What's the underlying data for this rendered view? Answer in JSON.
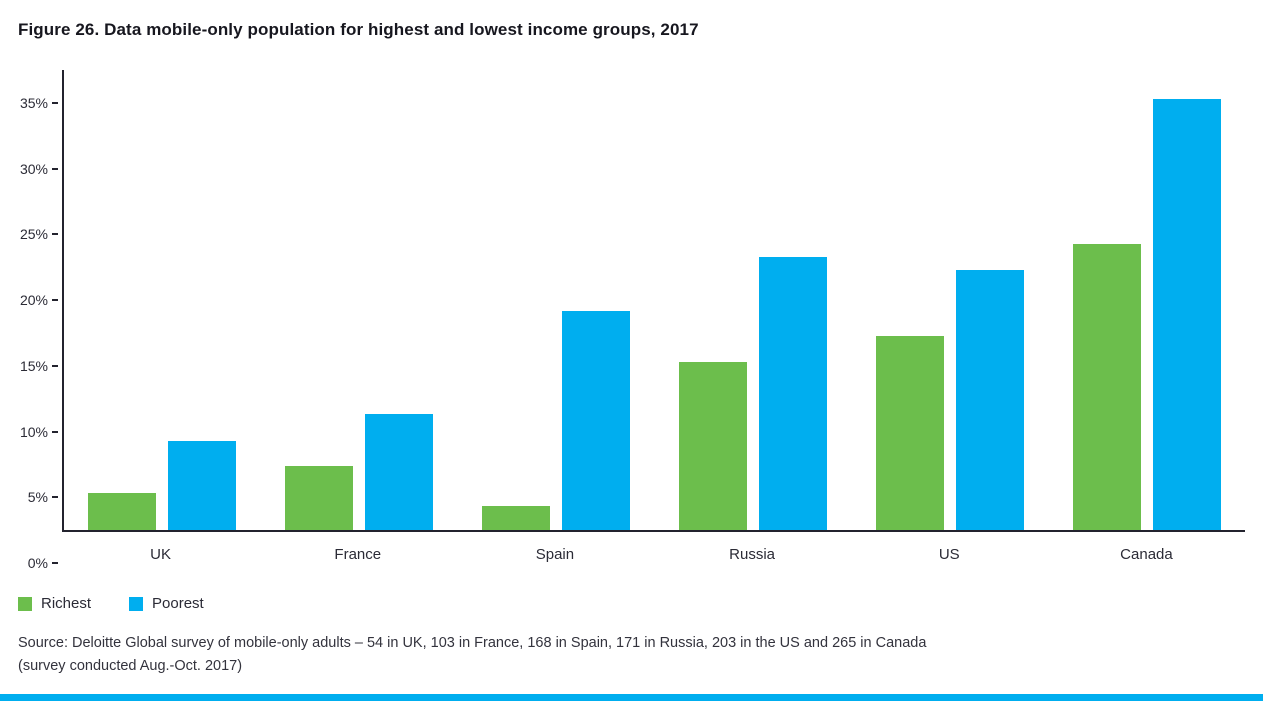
{
  "title": "Figure 26. Data mobile-only population for highest and lowest income groups, 2017",
  "chart_data": {
    "type": "bar",
    "title": "Figure 26. Data mobile-only population for highest and lowest income groups, 2017",
    "categories": [
      "UK",
      "France",
      "Spain",
      "Russia",
      "US",
      "Canada"
    ],
    "series": [
      {
        "name": "Richest",
        "color": "#6cbe4c",
        "values": [
          2.8,
          4.9,
          1.8,
          12.8,
          14.8,
          21.8
        ]
      },
      {
        "name": "Poorest",
        "color": "#00aeef",
        "values": [
          6.8,
          8.8,
          16.7,
          20.8,
          19.8,
          32.8
        ]
      }
    ],
    "xlabel": "",
    "ylabel": "",
    "ylim": [
      0,
      35
    ],
    "ytick_step": 5,
    "ytick_labels": [
      "0%",
      "5%",
      "10%",
      "15%",
      "20%",
      "25%",
      "30%",
      "35%"
    ],
    "grid": false,
    "legend_position": "bottom-left"
  },
  "legend": {
    "items": [
      {
        "label": "Richest",
        "color": "#6cbe4c"
      },
      {
        "label": "Poorest",
        "color": "#00aeef"
      }
    ]
  },
  "source": {
    "line1": "Source: Deloitte Global survey of mobile-only adults – 54 in UK, 103 in France, 168 in Spain, 171 in Russia, 203 in the US and 265 in Canada",
    "line2": "(survey conducted Aug.-Oct. 2017)"
  },
  "colors": {
    "accent_bar": "#00aeef",
    "axis": "#23232e",
    "text": "#33333d"
  }
}
